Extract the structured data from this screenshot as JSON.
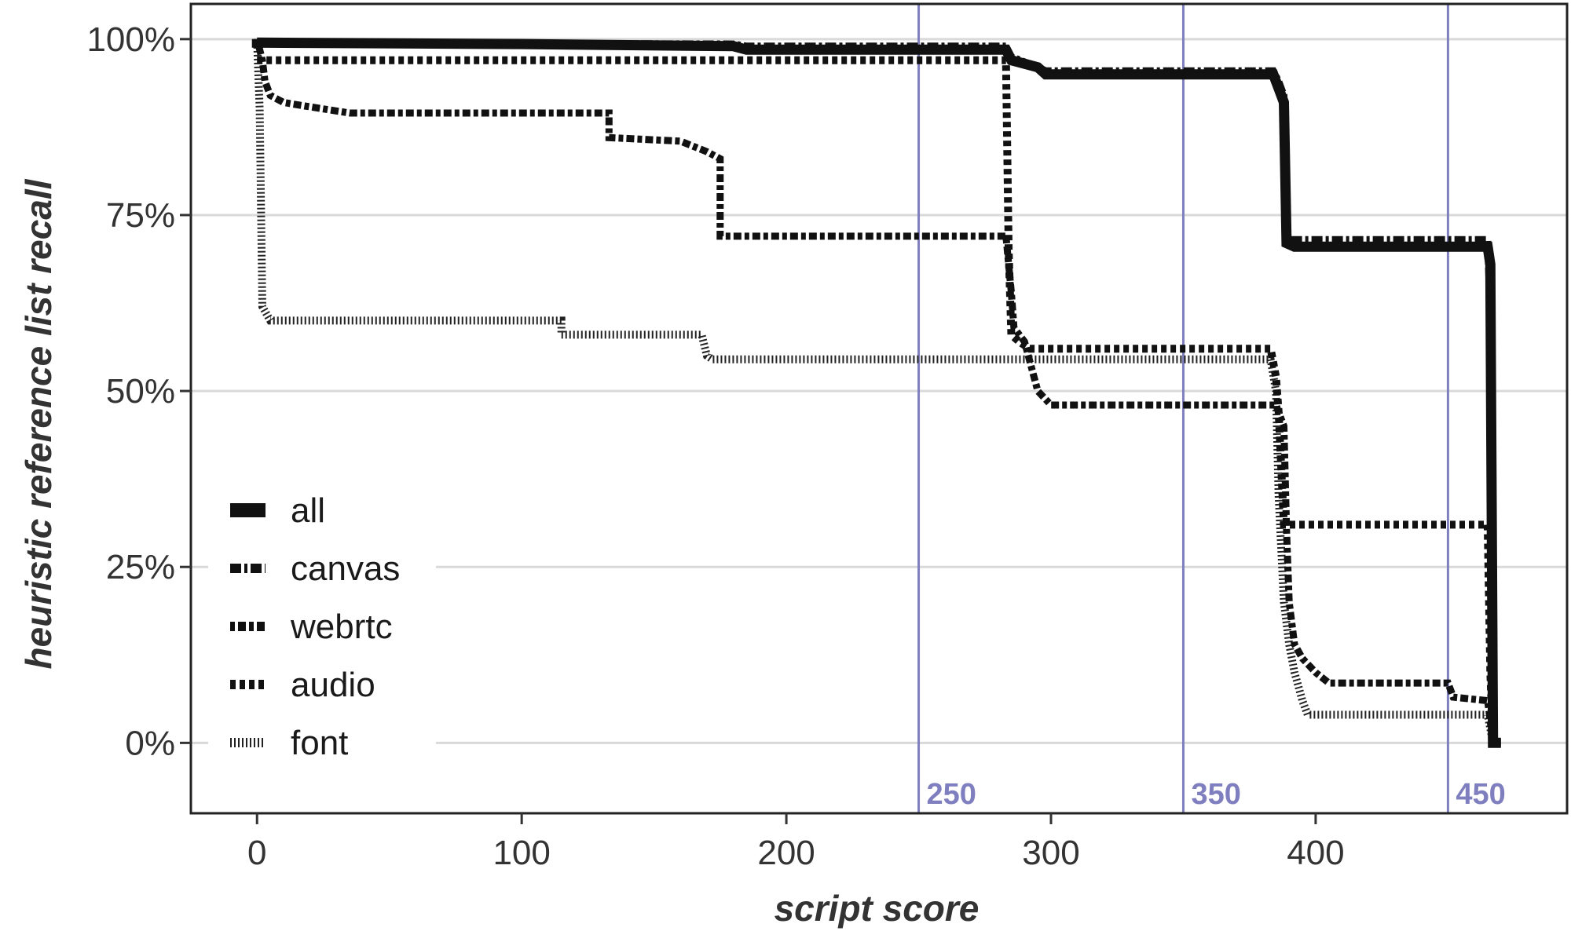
{
  "chart_data": {
    "type": "line",
    "subtype": "step",
    "xlabel": "script score",
    "ylabel": "heuristic reference list recall",
    "xlim": [
      -25,
      495
    ],
    "ylim": [
      -10,
      105
    ],
    "xticks": [
      0,
      100,
      200,
      300,
      400
    ],
    "xtick_labels": [
      "0",
      "100",
      "200",
      "300",
      "400"
    ],
    "yticks": [
      0,
      25,
      50,
      75,
      100
    ],
    "ytick_labels": [
      "0%",
      "25%",
      "50%",
      "75%",
      "100%"
    ],
    "grid": "horizontal",
    "legend_position": "bottom-left",
    "reference_lines": [
      {
        "x": 250,
        "label": "250"
      },
      {
        "x": 350,
        "label": "350"
      },
      {
        "x": 450,
        "label": "450"
      }
    ],
    "reference_color": "#7f7fbf",
    "series": [
      {
        "name": "all",
        "style": "solid",
        "width": 13,
        "points": [
          [
            0,
            100
          ],
          [
            0,
            99.5
          ],
          [
            100,
            99.3
          ],
          [
            180,
            99
          ],
          [
            185,
            98.5
          ],
          [
            283,
            98.5
          ],
          [
            285,
            97
          ],
          [
            295,
            96
          ],
          [
            298,
            95
          ],
          [
            384,
            95
          ],
          [
            386,
            93
          ],
          [
            388,
            91
          ],
          [
            389,
            71
          ],
          [
            392,
            70.5
          ],
          [
            465,
            70.5
          ],
          [
            466,
            68
          ],
          [
            467,
            0
          ],
          [
            470,
            0
          ]
        ]
      },
      {
        "name": "canvas",
        "style": "dashdot",
        "width": 9,
        "points": [
          [
            0,
            100
          ],
          [
            0,
            99.5
          ],
          [
            180,
            99.3
          ],
          [
            185,
            99
          ],
          [
            283,
            99
          ],
          [
            285,
            97.5
          ],
          [
            295,
            96
          ],
          [
            298,
            95.5
          ],
          [
            384,
            95.5
          ],
          [
            386,
            94
          ],
          [
            388,
            92
          ],
          [
            389,
            71.5
          ],
          [
            392,
            71.5
          ],
          [
            465,
            71.5
          ],
          [
            466,
            60
          ],
          [
            467,
            0
          ],
          [
            470,
            0
          ]
        ]
      },
      {
        "name": "webrtc",
        "style": "dashdot2",
        "width": 9,
        "points": [
          [
            0,
            100
          ],
          [
            2,
            97
          ],
          [
            3,
            94
          ],
          [
            5,
            92
          ],
          [
            10,
            91
          ],
          [
            18,
            90.5
          ],
          [
            35,
            89.5
          ],
          [
            133,
            89.5
          ],
          [
            133,
            86
          ],
          [
            160,
            85.5
          ],
          [
            170,
            84
          ],
          [
            175,
            83
          ],
          [
            175,
            72
          ],
          [
            283,
            72
          ],
          [
            285,
            64
          ],
          [
            286,
            59
          ],
          [
            290,
            57
          ],
          [
            295,
            50
          ],
          [
            300,
            48
          ],
          [
            385,
            48
          ],
          [
            388,
            45
          ],
          [
            389,
            30
          ],
          [
            390,
            20
          ],
          [
            392,
            14
          ],
          [
            395,
            12
          ],
          [
            400,
            10
          ],
          [
            405,
            8.5
          ],
          [
            450,
            8.5
          ],
          [
            452,
            6.5
          ],
          [
            465,
            6
          ],
          [
            466,
            3
          ],
          [
            467,
            0
          ],
          [
            470,
            0
          ]
        ]
      },
      {
        "name": "audio",
        "style": "dotted",
        "width": 10,
        "points": [
          [
            0,
            97
          ],
          [
            283,
            97
          ],
          [
            284,
            70
          ],
          [
            285,
            58
          ],
          [
            288,
            57
          ],
          [
            292,
            56
          ],
          [
            383,
            56
          ],
          [
            385,
            52
          ],
          [
            386,
            47
          ],
          [
            388,
            31
          ],
          [
            465,
            31
          ],
          [
            466,
            10
          ],
          [
            467,
            0
          ],
          [
            470,
            0
          ]
        ]
      },
      {
        "name": "font",
        "style": "hatch",
        "width": 10,
        "points": [
          [
            0,
            100
          ],
          [
            1,
            90
          ],
          [
            2,
            62
          ],
          [
            5,
            60
          ],
          [
            115,
            60
          ],
          [
            115,
            58
          ],
          [
            168,
            58
          ],
          [
            170,
            55
          ],
          [
            172,
            54.5
          ],
          [
            383,
            54.5
          ],
          [
            385,
            50
          ],
          [
            386,
            35
          ],
          [
            388,
            20
          ],
          [
            390,
            14
          ],
          [
            392,
            10
          ],
          [
            395,
            6
          ],
          [
            397,
            4
          ],
          [
            465,
            4
          ],
          [
            466,
            2
          ],
          [
            467,
            0
          ],
          [
            470,
            0
          ]
        ]
      }
    ]
  }
}
